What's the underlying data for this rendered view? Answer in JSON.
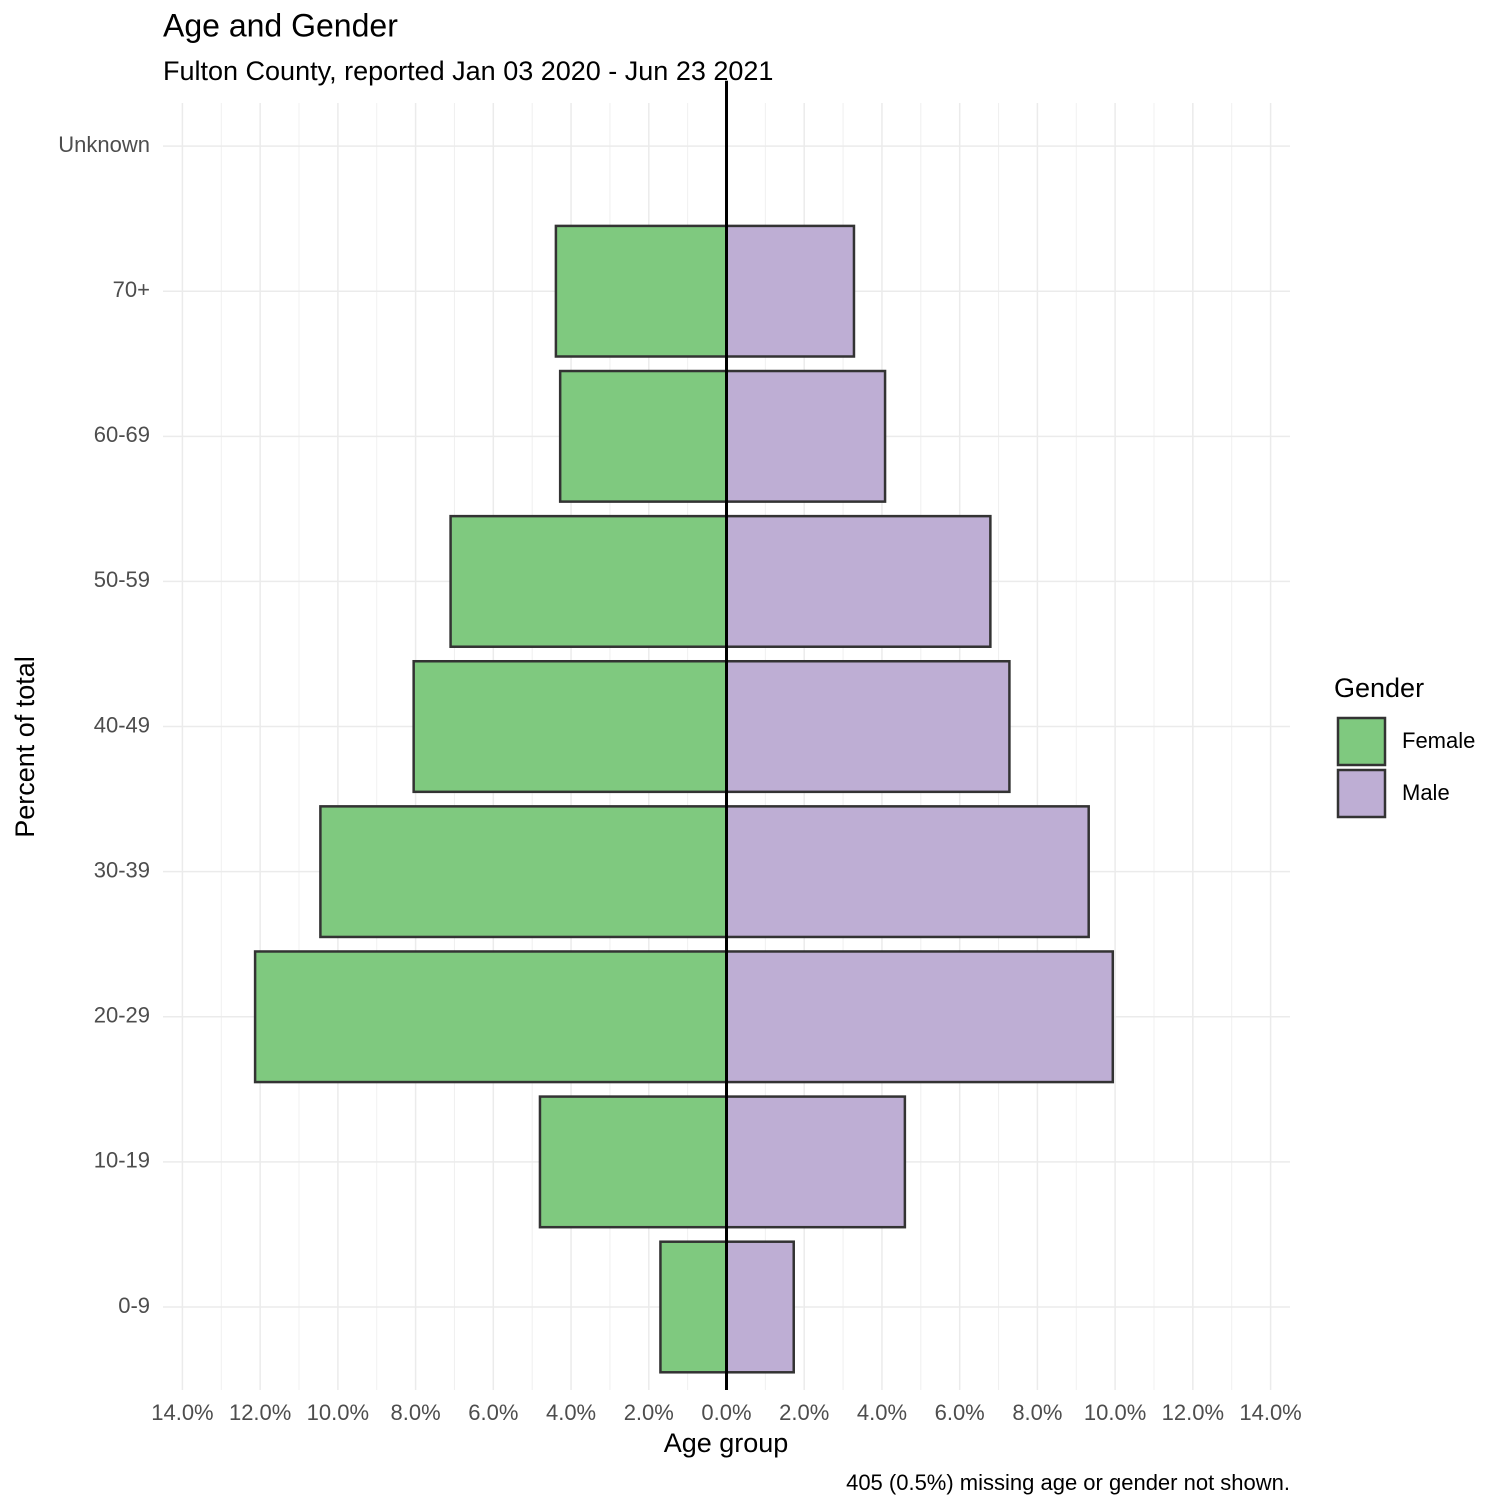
{
  "chart_data": {
    "type": "bar",
    "orientation": "horizontal",
    "title": "Age and Gender",
    "subtitle": "Fulton County, reported Jan 03 2020 - Jun 23 2021",
    "x_label": "Age group",
    "y_label": "Percent of total",
    "caption": "405 (0.5%) missing age or gender not shown.",
    "legend_title": "Gender",
    "legend_position": "right",
    "categories": [
      "0-9",
      "10-19",
      "20-29",
      "30-39",
      "40-49",
      "50-59",
      "60-69",
      "70+",
      "Unknown"
    ],
    "series": [
      {
        "name": "Female",
        "color": "#7fc97f",
        "values": [
          -1.7,
          -4.8,
          -12.13,
          -10.45,
          -8.05,
          -7.1,
          -4.28,
          -4.39,
          0
        ]
      },
      {
        "name": "Male",
        "color": "#beaed4",
        "values": [
          1.73,
          4.59,
          9.94,
          9.32,
          7.28,
          6.79,
          4.08,
          3.28,
          0
        ]
      }
    ],
    "xlim": [
      -14.5,
      14.5
    ],
    "xticks": [
      {
        "value": -14,
        "label": "14.0%"
      },
      {
        "value": -12,
        "label": "12.0%"
      },
      {
        "value": -10,
        "label": "10.0%"
      },
      {
        "value": -8,
        "label": "8.0%"
      },
      {
        "value": -6,
        "label": "6.0%"
      },
      {
        "value": -4,
        "label": "4.0%"
      },
      {
        "value": -2,
        "label": "2.0%"
      },
      {
        "value": 0,
        "label": "0.0%"
      },
      {
        "value": 2,
        "label": "2.0%"
      },
      {
        "value": 4,
        "label": "4.0%"
      },
      {
        "value": 6,
        "label": "6.0%"
      },
      {
        "value": 8,
        "label": "8.0%"
      },
      {
        "value": 10,
        "label": "10.0%"
      },
      {
        "value": 12,
        "label": "12.0%"
      },
      {
        "value": 14,
        "label": "14.0%"
      }
    ],
    "grid": true
  }
}
